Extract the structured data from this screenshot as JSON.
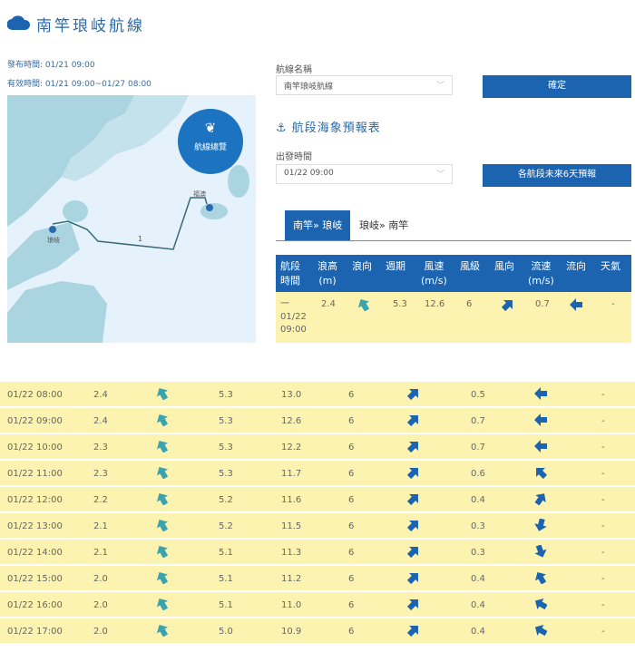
{
  "header": {
    "title": "南竿琅岐航線",
    "icon": "cloud-icon",
    "publish": "發布時間: 01/21 09:00",
    "valid": "有效時間: 01/21 09:00~01/27 08:00"
  },
  "map": {
    "overview_label": "航線總覽",
    "port_a": "琅岐",
    "port_b": "福澳",
    "segment": "1"
  },
  "form": {
    "route_label": "航線名稱",
    "route_value": "南竿琅岐航線",
    "confirm": "確定",
    "section_title": "航段海象預報表",
    "depart_label": "出發時間",
    "depart_value": "01/22 09:00",
    "forecast_btn": "各航段未來6天預報"
  },
  "tabs": [
    "南竿» 琅岐",
    "琅岐» 南竿"
  ],
  "colors": {
    "accent": "#1c64b0",
    "row_bg": "#fdf3b0",
    "wave_arrow": "#3aa3b0",
    "wind_arrow": "#1c64b0"
  },
  "table": {
    "headers": [
      "航段\n時間",
      "浪高\n(m)",
      "浪向",
      "週期",
      "風速\n(m/s)",
      "風級",
      "風向",
      "流速\n(m/s)",
      "流向",
      "天氣"
    ],
    "first_row": {
      "time": "一\n01/22\n09:00",
      "wave": "2.4",
      "wave_dir": -30,
      "period": "5.3",
      "wind": "12.6",
      "level": "6",
      "wind_dir": 45,
      "current": "0.7",
      "current_dir": 270,
      "weather": "-"
    }
  },
  "rows": [
    {
      "time": "01/22 08:00",
      "wave": "2.4",
      "wave_dir": -30,
      "period": "5.3",
      "wind": "13.0",
      "level": "6",
      "wind_dir": 45,
      "current": "0.5",
      "current_dir": 270,
      "weather": "-"
    },
    {
      "time": "01/22 09:00",
      "wave": "2.4",
      "wave_dir": -30,
      "period": "5.3",
      "wind": "12.6",
      "level": "6",
      "wind_dir": 45,
      "current": "0.7",
      "current_dir": 270,
      "weather": "-"
    },
    {
      "time": "01/22 10:00",
      "wave": "2.3",
      "wave_dir": -30,
      "period": "5.3",
      "wind": "12.2",
      "level": "6",
      "wind_dir": 45,
      "current": "0.7",
      "current_dir": 270,
      "weather": "-"
    },
    {
      "time": "01/22 11:00",
      "wave": "2.3",
      "wave_dir": -30,
      "period": "5.3",
      "wind": "11.7",
      "level": "6",
      "wind_dir": 45,
      "current": "0.6",
      "current_dir": 315,
      "weather": "-"
    },
    {
      "time": "01/22 12:00",
      "wave": "2.2",
      "wave_dir": -30,
      "period": "5.2",
      "wind": "11.6",
      "level": "6",
      "wind_dir": 45,
      "current": "0.4",
      "current_dir": 35,
      "weather": "-"
    },
    {
      "time": "01/22 13:00",
      "wave": "2.1",
      "wave_dir": -30,
      "period": "5.2",
      "wind": "11.5",
      "level": "6",
      "wind_dir": 45,
      "current": "0.3",
      "current_dir": 195,
      "weather": "-"
    },
    {
      "time": "01/22 14:00",
      "wave": "2.1",
      "wave_dir": -30,
      "period": "5.1",
      "wind": "11.3",
      "level": "6",
      "wind_dir": 45,
      "current": "0.3",
      "current_dir": 160,
      "weather": "-"
    },
    {
      "time": "01/22 15:00",
      "wave": "2.0",
      "wave_dir": -30,
      "period": "5.1",
      "wind": "11.2",
      "level": "6",
      "wind_dir": 45,
      "current": "0.4",
      "current_dir": 330,
      "weather": "-"
    },
    {
      "time": "01/22 16:00",
      "wave": "2.0",
      "wave_dir": -30,
      "period": "5.1",
      "wind": "11.0",
      "level": "6",
      "wind_dir": 45,
      "current": "0.4",
      "current_dir": 300,
      "weather": "-"
    },
    {
      "time": "01/22 17:00",
      "wave": "2.0",
      "wave_dir": -30,
      "period": "5.0",
      "wind": "10.9",
      "level": "6",
      "wind_dir": 45,
      "current": "0.4",
      "current_dir": 300,
      "weather": "-"
    }
  ]
}
